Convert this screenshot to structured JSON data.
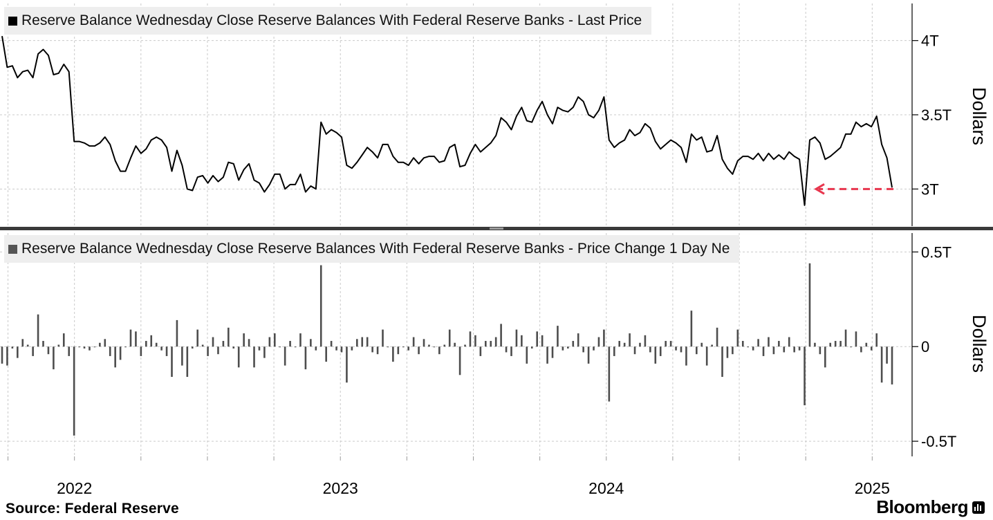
{
  "chart_data": [
    {
      "type": "line",
      "legend": "Reserve Balance Wednesday Close Reserve Balances With Federal Reserve Banks - Last Price",
      "legend_color": "#000000",
      "line_color": "#000000",
      "ylabel": "Dollars",
      "ylim": [
        2.75,
        4.25
      ],
      "yticks": [
        3.0,
        3.5,
        4.0
      ],
      "ytick_labels": [
        "3T",
        "3.5T",
        "4T"
      ],
      "xlim": [
        2021.72,
        2025.15
      ],
      "xticks": [
        2022.0,
        2023.0,
        2024.0,
        2025.0
      ],
      "annotation": {
        "type": "dashed-arrow",
        "color": "#e8364e",
        "value": 3.0
      },
      "series": [
        {
          "name": "Last Price (T)",
          "values": [
            4.03,
            3.82,
            3.83,
            3.75,
            3.79,
            3.8,
            3.75,
            3.91,
            3.94,
            3.9,
            3.77,
            3.78,
            3.84,
            3.79,
            3.32,
            3.32,
            3.31,
            3.29,
            3.29,
            3.31,
            3.35,
            3.3,
            3.19,
            3.12,
            3.12,
            3.21,
            3.29,
            3.24,
            3.27,
            3.33,
            3.35,
            3.33,
            3.28,
            3.12,
            3.26,
            3.16,
            3.0,
            2.99,
            3.08,
            3.09,
            3.04,
            3.09,
            3.05,
            3.08,
            3.18,
            3.17,
            3.06,
            3.13,
            3.17,
            3.06,
            3.04,
            2.98,
            3.03,
            3.1,
            3.1,
            3.0,
            3.03,
            3.03,
            3.1,
            2.98,
            3.02,
            3.0,
            3.45,
            3.37,
            3.4,
            3.38,
            3.35,
            3.16,
            3.14,
            3.18,
            3.23,
            3.28,
            3.25,
            3.21,
            3.3,
            3.3,
            3.22,
            3.18,
            3.18,
            3.16,
            3.21,
            3.17,
            3.21,
            3.22,
            3.22,
            3.18,
            3.19,
            3.28,
            3.3,
            3.15,
            3.16,
            3.24,
            3.3,
            3.25,
            3.28,
            3.31,
            3.36,
            3.48,
            3.45,
            3.4,
            3.49,
            3.55,
            3.46,
            3.45,
            3.53,
            3.59,
            3.5,
            3.44,
            3.55,
            3.53,
            3.52,
            3.55,
            3.62,
            3.59,
            3.5,
            3.48,
            3.53,
            3.62,
            3.33,
            3.28,
            3.31,
            3.33,
            3.4,
            3.36,
            3.38,
            3.44,
            3.41,
            3.32,
            3.27,
            3.3,
            3.33,
            3.31,
            3.28,
            3.18,
            3.37,
            3.33,
            3.35,
            3.25,
            3.26,
            3.36,
            3.2,
            3.14,
            3.1,
            3.19,
            3.22,
            3.22,
            3.2,
            3.24,
            3.19,
            3.24,
            3.2,
            3.23,
            3.2,
            3.25,
            3.22,
            3.2,
            2.89,
            3.33,
            3.35,
            3.31,
            3.2,
            3.22,
            3.25,
            3.28,
            3.37,
            3.37,
            3.45,
            3.42,
            3.44,
            3.42,
            3.49,
            3.3,
            3.21,
            3.01
          ]
        }
      ]
    },
    {
      "type": "bar",
      "legend": "Reserve Balance Wednesday Close Reserve Balances With Federal Reserve Banks - Price Change 1 Day Ne",
      "legend_color": "#555555",
      "bar_color": "#4d4d4d",
      "ylabel": "Dollars",
      "ylim": [
        -0.58,
        0.6
      ],
      "yticks": [
        -0.5,
        0.0,
        0.5
      ],
      "ytick_labels": [
        "-0.5T",
        "0",
        "0.5T"
      ],
      "series": [
        {
          "name": "Price Change 1 Day (T)",
          "values": [
            -0.09,
            -0.1,
            -0.01,
            -0.06,
            0.04,
            0.01,
            -0.05,
            0.17,
            0.03,
            -0.04,
            -0.12,
            0.01,
            0.07,
            -0.05,
            -0.47,
            0.0,
            -0.01,
            -0.02,
            0.0,
            0.02,
            0.04,
            -0.05,
            -0.11,
            -0.07,
            0.0,
            0.09,
            0.08,
            -0.05,
            0.03,
            0.06,
            0.02,
            -0.02,
            -0.05,
            -0.16,
            0.14,
            -0.1,
            -0.16,
            -0.01,
            0.09,
            0.01,
            -0.05,
            0.05,
            -0.04,
            0.03,
            0.1,
            -0.01,
            -0.11,
            0.07,
            0.04,
            -0.11,
            -0.02,
            -0.06,
            0.05,
            0.07,
            0.0,
            -0.1,
            0.03,
            0.0,
            0.07,
            -0.12,
            0.04,
            -0.02,
            0.43,
            -0.08,
            0.03,
            -0.02,
            -0.03,
            -0.19,
            -0.02,
            0.04,
            0.05,
            0.05,
            -0.03,
            -0.04,
            0.09,
            0.0,
            -0.08,
            -0.04,
            0.0,
            -0.02,
            0.05,
            -0.04,
            0.04,
            0.01,
            0.0,
            -0.04,
            0.01,
            0.09,
            0.02,
            -0.15,
            0.01,
            0.08,
            0.06,
            -0.05,
            0.03,
            0.03,
            0.05,
            0.12,
            -0.03,
            -0.05,
            0.09,
            0.06,
            -0.09,
            -0.01,
            0.08,
            0.06,
            -0.09,
            -0.06,
            0.11,
            -0.02,
            -0.01,
            0.03,
            0.07,
            -0.03,
            -0.09,
            -0.02,
            0.05,
            0.09,
            -0.29,
            -0.05,
            0.03,
            0.02,
            0.07,
            -0.04,
            0.02,
            0.06,
            -0.03,
            -0.09,
            -0.05,
            0.03,
            0.03,
            -0.02,
            -0.03,
            -0.1,
            0.19,
            -0.04,
            0.02,
            -0.1,
            0.01,
            0.1,
            -0.16,
            -0.06,
            -0.04,
            0.09,
            0.03,
            0.0,
            -0.02,
            0.04,
            -0.05,
            0.05,
            -0.04,
            0.03,
            -0.03,
            0.05,
            -0.03,
            -0.02,
            -0.31,
            0.44,
            0.02,
            -0.04,
            -0.11,
            0.02,
            0.03,
            0.03,
            0.09,
            0.0,
            0.08,
            -0.03,
            0.02,
            -0.02,
            0.07,
            -0.19,
            -0.09,
            -0.2
          ]
        }
      ]
    }
  ],
  "footer": {
    "source": "Source:  Federal Reserve",
    "brand": "Bloomberg"
  }
}
